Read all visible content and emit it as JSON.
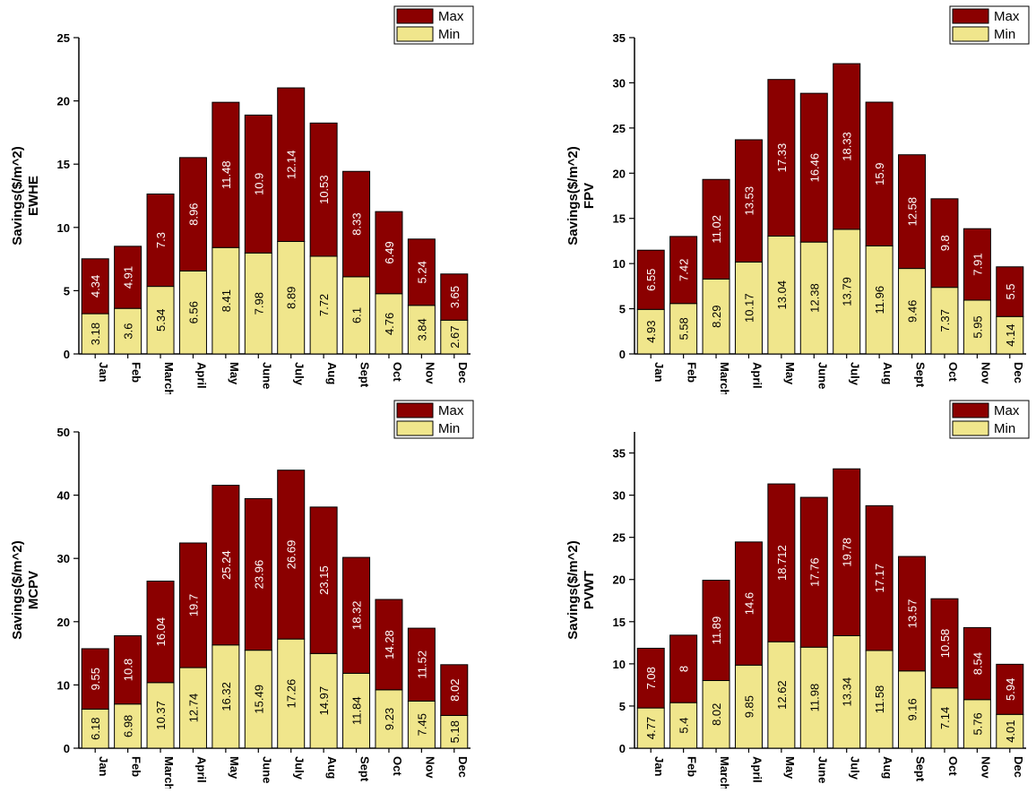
{
  "colors": {
    "max": "#8B0000",
    "min": "#F0E68C",
    "axis": "#000000",
    "label_on_max": "#ffffff",
    "label_on_min": "#000000"
  },
  "legend": {
    "max": "Max",
    "min": "Min"
  },
  "chart_data": [
    {
      "type": "bar",
      "stacked": true,
      "ylabel_top": "Savings($/m^2)",
      "ylabel_bottom": "EWHE",
      "categories": [
        "Jan",
        "Feb",
        "March",
        "April",
        "May",
        "June",
        "July",
        "Aug",
        "Sept",
        "Oct",
        "Nov",
        "Dec"
      ],
      "ylim": [
        0,
        25
      ],
      "yticks": [
        0,
        5,
        10,
        15,
        20,
        25
      ],
      "series": [
        {
          "name": "Min",
          "values": [
            3.18,
            3.6,
            5.34,
            6.56,
            8.41,
            7.98,
            8.89,
            7.72,
            6.1,
            4.76,
            3.84,
            2.67
          ]
        },
        {
          "name": "Max",
          "values": [
            4.34,
            4.91,
            7.3,
            8.96,
            11.48,
            10.9,
            12.14,
            10.53,
            8.33,
            6.49,
            5.24,
            3.65
          ]
        }
      ]
    },
    {
      "type": "bar",
      "stacked": true,
      "ylabel_top": "Savings($/m^2)",
      "ylabel_bottom": "FPV",
      "categories": [
        "Jan",
        "Feb",
        "March",
        "April",
        "May",
        "June",
        "July",
        "Aug",
        "Sept",
        "Oct",
        "Nov",
        "Dec"
      ],
      "ylim": [
        0,
        35
      ],
      "yticks": [
        0,
        5,
        10,
        15,
        20,
        25,
        30,
        35
      ],
      "series": [
        {
          "name": "Min",
          "values": [
            4.93,
            5.58,
            8.29,
            10.17,
            13.04,
            12.38,
            13.79,
            11.96,
            9.46,
            7.37,
            5.95,
            4.14
          ]
        },
        {
          "name": "Max",
          "values": [
            6.55,
            7.42,
            11.02,
            13.53,
            17.33,
            16.46,
            18.33,
            15.9,
            12.58,
            9.8,
            7.91,
            5.5
          ]
        }
      ]
    },
    {
      "type": "bar",
      "stacked": true,
      "ylabel_top": "Savings($/m^2)",
      "ylabel_bottom": "MCPV",
      "categories": [
        "Jan",
        "Feb",
        "March",
        "April",
        "May",
        "June",
        "July",
        "Aug",
        "Sept",
        "Oct",
        "Nov",
        "Dec"
      ],
      "ylim": [
        0,
        50
      ],
      "yticks": [
        0,
        10,
        20,
        30,
        40,
        50
      ],
      "series": [
        {
          "name": "Min",
          "values": [
            6.18,
            6.98,
            10.37,
            12.74,
            16.32,
            15.49,
            17.26,
            14.97,
            11.84,
            9.23,
            7.45,
            5.18
          ]
        },
        {
          "name": "Max",
          "values": [
            9.55,
            10.8,
            16.04,
            19.7,
            25.24,
            23.96,
            26.69,
            23.15,
            18.32,
            14.28,
            11.52,
            8.02
          ]
        }
      ]
    },
    {
      "type": "bar",
      "stacked": true,
      "ylabel_top": "Savings($/m^2)",
      "ylabel_bottom": "PVWT",
      "categories": [
        "Jan",
        "Feb",
        "March",
        "April",
        "May",
        "June",
        "July",
        "Aug",
        "Sept",
        "Oct",
        "Nov",
        "Dec"
      ],
      "ylim": [
        0,
        37.5
      ],
      "yticks": [
        0,
        5,
        10,
        15,
        20,
        25,
        30,
        35
      ],
      "series": [
        {
          "name": "Min",
          "values": [
            4.77,
            5.4,
            8.02,
            9.85,
            12.62,
            11.98,
            13.34,
            11.58,
            9.16,
            7.14,
            5.76,
            4.01
          ]
        },
        {
          "name": "Max",
          "values": [
            7.08,
            8,
            11.89,
            14.6,
            18.712,
            17.76,
            19.78,
            17.17,
            13.57,
            10.58,
            8.54,
            5.94
          ]
        }
      ]
    }
  ]
}
